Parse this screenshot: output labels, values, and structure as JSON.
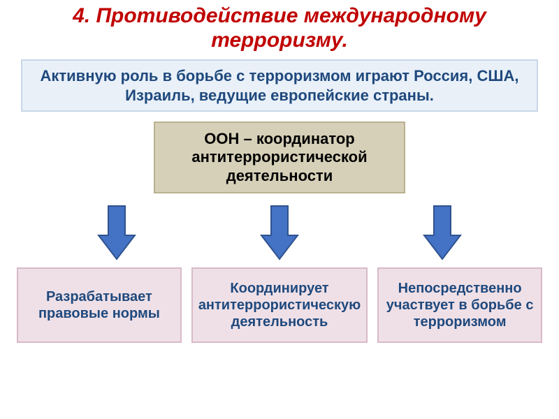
{
  "title": {
    "text": "4. Противодействие международному терроризму.",
    "color": "#c00000",
    "fontsize": 30
  },
  "intro": {
    "text": "Активную роль в борьбе с терроризмом играют Россия, США, Израиль, ведущие европейские страны.",
    "background": "#e9f0f8",
    "border": "#c7d6e9",
    "color": "#1f497d",
    "fontsize": 22
  },
  "mid": {
    "text": "ООН – координатор антитеррористической деятельности",
    "background": "#d6d0b8",
    "border": "#b9b190",
    "color": "#000000",
    "fontsize": 22
  },
  "arrow": {
    "fill": "#4472c4",
    "stroke": "#2f528f",
    "width": 56,
    "height": 80
  },
  "bottom": {
    "background": "#efe0e7",
    "border": "#d8b9c8",
    "color": "#1f497d",
    "fontsize": 20,
    "items": [
      {
        "text": "Разрабатывает правовые нормы"
      },
      {
        "text": "Координирует антитеррористическую деятельность"
      },
      {
        "text": "Непосредственно участвует в борьбе с терроризмом"
      }
    ]
  }
}
